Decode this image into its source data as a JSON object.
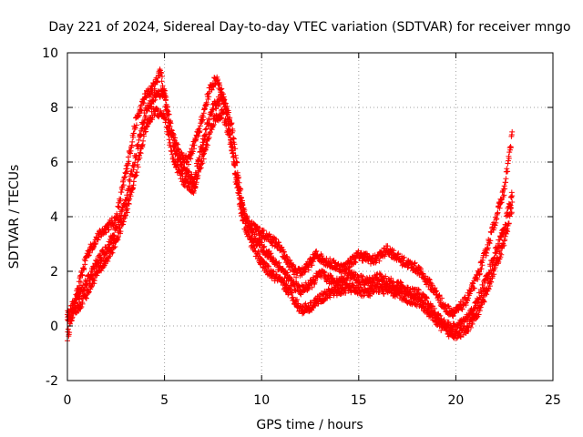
{
  "chart_data": {
    "type": "scatter",
    "title": "Day 221 of 2024, Sidereal Day-to-day VTEC variation (SDTVAR) for receiver mngo",
    "xlabel": "GPS time / hours",
    "ylabel": "SDTVAR / TECUs",
    "xlim": [
      0,
      25
    ],
    "ylim": [
      -2,
      10
    ],
    "xticks": [
      "0",
      "5",
      "10",
      "15",
      "20",
      "25"
    ],
    "yticks": [
      "-2",
      "0",
      "2",
      "4",
      "6",
      "8",
      "10"
    ],
    "grid": true,
    "marker": "+",
    "series": [
      {
        "name": "SDTVAR",
        "color": "#ff0000",
        "bands": [
          {
            "x": [
              0.0,
              0.5,
              1.0,
              1.5,
              2.0,
              2.5,
              3.0,
              3.5,
              4.0,
              4.5,
              4.8,
              5.2,
              5.8,
              6.2,
              6.8,
              7.3,
              7.7,
              8.2,
              8.7,
              9.2,
              9.7,
              10.2,
              10.8,
              11.3,
              11.8,
              12.3,
              12.8,
              13.5,
              14.2,
              15.0,
              15.8,
              16.5,
              17.2,
              18.0,
              18.8,
              19.5,
              20.0,
              20.5,
              21.0,
              21.5,
              22.0,
              22.5,
              22.9
            ],
            "y": [
              -0.4,
              1.2,
              2.6,
              3.2,
              3.6,
              3.9,
              5.6,
              7.4,
              8.4,
              8.8,
              9.4,
              7.4,
              6.3,
              6.0,
              7.2,
              8.6,
              9.1,
              7.9,
              5.2,
              3.9,
              3.5,
              3.3,
              3.0,
              2.4,
              1.9,
              2.1,
              2.6,
              2.3,
              2.1,
              2.6,
              2.4,
              2.8,
              2.4,
              2.1,
              1.4,
              0.6,
              0.5,
              0.9,
              1.6,
              2.6,
              3.8,
              5.0,
              7.0
            ]
          },
          {
            "x": [
              0.0,
              0.5,
              1.0,
              1.5,
              2.0,
              2.5,
              3.0,
              3.5,
              4.0,
              4.5,
              5.0,
              5.5,
              6.0,
              6.5,
              7.0,
              7.5,
              8.0,
              8.5,
              9.0,
              9.5,
              10.0,
              10.5,
              11.0,
              11.5,
              12.0,
              12.5,
              13.0,
              13.5,
              14.0,
              14.5,
              15.0,
              15.5,
              16.0,
              16.5,
              17.0,
              17.5,
              18.0,
              18.5,
              19.0,
              19.5,
              20.0,
              20.5,
              21.0,
              21.5,
              22.0,
              22.5,
              22.9
            ],
            "y": [
              0.4,
              1.0,
              1.6,
              2.3,
              2.8,
              3.5,
              4.6,
              6.2,
              7.8,
              8.4,
              8.6,
              6.5,
              5.7,
              5.3,
              6.8,
              8.0,
              8.4,
              7.2,
              4.4,
              3.3,
              2.9,
              2.5,
              2.1,
              1.6,
              1.3,
              1.5,
              1.9,
              1.7,
              1.6,
              1.9,
              1.7,
              1.6,
              1.8,
              1.6,
              1.5,
              1.3,
              1.2,
              0.9,
              0.4,
              0.0,
              -0.1,
              0.2,
              0.7,
              1.6,
              2.6,
              3.6,
              4.8
            ]
          },
          {
            "x": [
              0.0,
              0.5,
              1.0,
              1.5,
              2.0,
              2.5,
              3.0,
              3.5,
              4.0,
              4.5,
              5.0,
              5.5,
              6.0,
              6.5,
              7.0,
              7.5,
              8.0,
              8.5,
              9.0,
              9.5,
              10.0,
              10.5,
              11.0,
              11.5,
              12.0,
              12.5,
              13.0,
              13.5,
              14.0,
              14.5,
              15.0,
              15.5,
              16.0,
              16.5,
              17.0,
              17.5,
              18.0,
              18.5,
              19.0,
              19.5,
              20.0,
              20.5,
              21.0,
              21.5,
              22.0,
              22.5,
              22.9
            ],
            "y": [
              0.2,
              0.6,
              1.2,
              1.9,
              2.4,
              3.1,
              4.1,
              5.5,
              7.2,
              7.9,
              7.7,
              5.9,
              5.3,
              5.0,
              6.2,
              7.5,
              7.8,
              6.5,
              3.9,
              3.0,
              2.3,
              1.9,
              1.6,
              1.2,
              0.6,
              0.7,
              1.0,
              1.2,
              1.3,
              1.4,
              1.3,
              1.2,
              1.4,
              1.3,
              1.2,
              1.0,
              0.9,
              0.6,
              0.2,
              -0.2,
              -0.3,
              -0.2,
              0.3,
              1.1,
              2.1,
              3.1,
              4.4
            ]
          }
        ]
      }
    ]
  }
}
